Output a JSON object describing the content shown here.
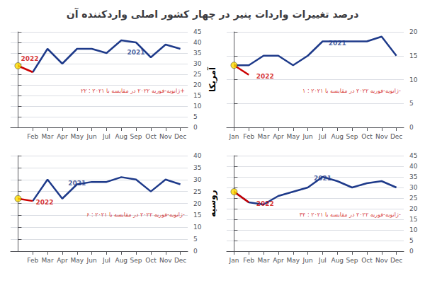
{
  "title": "درصد تغییرات واردات پنیر در چهار کشور اصلی واردکننده آن",
  "chart_data": [
    {
      "type": "line",
      "xticks": [
        {
          "value": 1,
          "label": "Feb"
        },
        {
          "value": 2,
          "label": "Mar"
        },
        {
          "value": 3,
          "label": "Apr"
        },
        {
          "value": 4,
          "label": "May"
        },
        {
          "value": 5,
          "label": "Jun"
        },
        {
          "value": 6,
          "label": "Jul"
        },
        {
          "value": 7,
          "label": "Aug"
        },
        {
          "value": 8,
          "label": "Sep"
        },
        {
          "value": 9,
          "label": "Oct"
        },
        {
          "value": 10,
          "label": "Nov"
        },
        {
          "value": 11,
          "label": "Dec"
        }
      ],
      "xlim": [
        -0.5,
        11.5
      ],
      "ylim": [
        0,
        45
      ],
      "yticks": [
        0,
        5,
        10,
        15,
        20,
        25,
        30,
        35,
        40,
        45
      ],
      "grid": true,
      "series": [
        {
          "type": "line",
          "color": "#1e3a8a",
          "x": [
            1,
            2,
            3,
            4,
            5,
            6,
            7,
            8,
            9,
            10,
            11
          ],
          "values": [
            26,
            37,
            30,
            37,
            37,
            35,
            41,
            40,
            33,
            39,
            37
          ]
        },
        {
          "type": "line",
          "color": "#cc0000",
          "x": [
            0,
            1
          ],
          "values": [
            29,
            26
          ]
        },
        {
          "type": "scatter",
          "color": "#ffdd00",
          "marker": "circle",
          "x": [
            0
          ],
          "values": [
            29
          ]
        }
      ],
      "annotations": [
        {
          "text": "2021",
          "x": 8,
          "y": 34,
          "color": "#1e3a8a"
        },
        {
          "text": "2022",
          "x": 0.2,
          "y": 31,
          "color": "#cc0000"
        },
        {
          "text": "ژانویه-فوریه ۲۰۲۲ در مقایسه با ۲۰۲۱ : ۲۲+",
          "x": 11.3,
          "y": 15.75,
          "color": "#cc0000"
        }
      ]
    },
    {
      "type": "line",
      "ylabel": "آمریکا",
      "xticks": [
        {
          "value": 0,
          "label": "Jan"
        },
        {
          "value": 1,
          "label": "Feb"
        },
        {
          "value": 2,
          "label": "Mar"
        },
        {
          "value": 3,
          "label": "Apr"
        },
        {
          "value": 4,
          "label": "May"
        },
        {
          "value": 5,
          "label": "Jun"
        },
        {
          "value": 6,
          "label": "Jul"
        },
        {
          "value": 7,
          "label": "Aug"
        },
        {
          "value": 8,
          "label": "Sep"
        },
        {
          "value": 9,
          "label": "Oct"
        },
        {
          "value": 10,
          "label": "Nov"
        },
        {
          "value": 11,
          "label": "Dec"
        }
      ],
      "xlim": [
        -0.5,
        11.5
      ],
      "ylim": [
        0,
        20
      ],
      "yticks": [
        0,
        5,
        10,
        15,
        20
      ],
      "grid": true,
      "series": [
        {
          "type": "line",
          "color": "#1e3a8a",
          "x": [
            0,
            1,
            2,
            3,
            4,
            5,
            6,
            7,
            8,
            9,
            10,
            11
          ],
          "values": [
            13,
            13,
            15,
            15,
            13,
            15,
            18,
            18,
            18,
            18,
            19,
            15
          ]
        },
        {
          "type": "line",
          "color": "#cc0000",
          "x": [
            0,
            1
          ],
          "values": [
            13,
            11
          ]
        },
        {
          "type": "scatter",
          "color": "#ffdd00",
          "marker": "circle",
          "x": [
            0
          ],
          "values": [
            13
          ]
        }
      ],
      "annotations": [
        {
          "text": "2021",
          "x": 7,
          "y": 17,
          "color": "#1e3a8a"
        },
        {
          "text": "2022",
          "x": 1.5,
          "y": 10.0,
          "color": "#cc0000"
        },
        {
          "text": "ژانویه-فوریه ۲۰۲۲ در مقایسه با ۲۰۲۱ : ۱-",
          "x": 11.3,
          "y": 7,
          "color": "#cc0000"
        }
      ]
    },
    {
      "type": "line",
      "xticks": [
        {
          "value": 1,
          "label": "Feb"
        },
        {
          "value": 2,
          "label": "Mar"
        },
        {
          "value": 3,
          "label": "Apr"
        },
        {
          "value": 4,
          "label": "May"
        },
        {
          "value": 5,
          "label": "Jun"
        },
        {
          "value": 6,
          "label": "Jul"
        },
        {
          "value": 7,
          "label": "Aug"
        },
        {
          "value": 8,
          "label": "Sep"
        },
        {
          "value": 9,
          "label": "Oct"
        },
        {
          "value": 10,
          "label": "Nov"
        },
        {
          "value": 11,
          "label": "Dec"
        }
      ],
      "xlim": [
        -0.5,
        11.5
      ],
      "ylim": [
        0,
        40
      ],
      "yticks": [
        0,
        5,
        10,
        15,
        20,
        25,
        30,
        35,
        40
      ],
      "grid": true,
      "series": [
        {
          "type": "line",
          "color": "#1e3a8a",
          "x": [
            1,
            2,
            3,
            4,
            5,
            6,
            7,
            8,
            9,
            10,
            11
          ],
          "values": [
            21,
            30,
            22,
            28,
            29,
            29,
            31,
            30,
            25,
            30,
            28
          ]
        },
        {
          "type": "line",
          "color": "#cc0000",
          "x": [
            0,
            1
          ],
          "values": [
            22,
            21
          ]
        },
        {
          "type": "scatter",
          "color": "#ffdd00",
          "marker": "circle",
          "x": [
            0
          ],
          "values": [
            22
          ]
        }
      ],
      "annotations": [
        {
          "text": "2021",
          "x": 4,
          "y": 27,
          "color": "#1e3a8a"
        },
        {
          "text": "2022",
          "x": 1.2,
          "y": 19,
          "color": "#cc0000"
        },
        {
          "text": "ژانویه-فوریه ۲۰۲۲ در مقایسه با ۲۰۲۱ : ۶-",
          "x": 11.3,
          "y": 14,
          "color": "#cc0000"
        }
      ]
    },
    {
      "type": "line",
      "ylabel": "روسیه",
      "xticks": [
        {
          "value": 0,
          "label": "Jan"
        },
        {
          "value": 1,
          "label": "Feb"
        },
        {
          "value": 2,
          "label": "Mar"
        },
        {
          "value": 3,
          "label": "Apr"
        },
        {
          "value": 4,
          "label": "May"
        },
        {
          "value": 5,
          "label": "Jun"
        },
        {
          "value": 6,
          "label": "Jul"
        },
        {
          "value": 7,
          "label": "Aug"
        },
        {
          "value": 8,
          "label": "Sep"
        },
        {
          "value": 9,
          "label": "Oct"
        },
        {
          "value": 10,
          "label": "Nov"
        },
        {
          "value": 11,
          "label": "Dec"
        }
      ],
      "xlim": [
        -0.5,
        11.5
      ],
      "ylim": [
        0,
        45
      ],
      "yticks": [
        0,
        5,
        10,
        15,
        20,
        25,
        30,
        35,
        40,
        45
      ],
      "grid": true,
      "series": [
        {
          "type": "line",
          "color": "#1e3a8a",
          "x": [
            0,
            1,
            2,
            3,
            4,
            5,
            6,
            7,
            8,
            9,
            10,
            11
          ],
          "values": [
            28,
            23,
            22,
            26,
            28,
            30,
            35,
            33,
            30,
            32,
            33,
            30
          ]
        },
        {
          "type": "line",
          "color": "#cc0000",
          "x": [
            0,
            1
          ],
          "values": [
            28,
            23
          ]
        },
        {
          "type": "scatter",
          "color": "#ffdd00",
          "marker": "circle",
          "x": [
            0
          ],
          "values": [
            28
          ]
        }
      ],
      "annotations": [
        {
          "text": "2021",
          "x": 6,
          "y": 33,
          "color": "#1e3a8a"
        },
        {
          "text": "2022",
          "x": 1.5,
          "y": 21,
          "color": "#cc0000"
        },
        {
          "text": "ژانویه-فوریه ۲۰۲۲ در مقایسه با ۲۰۲۱ : ۳۴-",
          "x": 11.3,
          "y": 15.75,
          "color": "#cc0000"
        }
      ]
    }
  ]
}
